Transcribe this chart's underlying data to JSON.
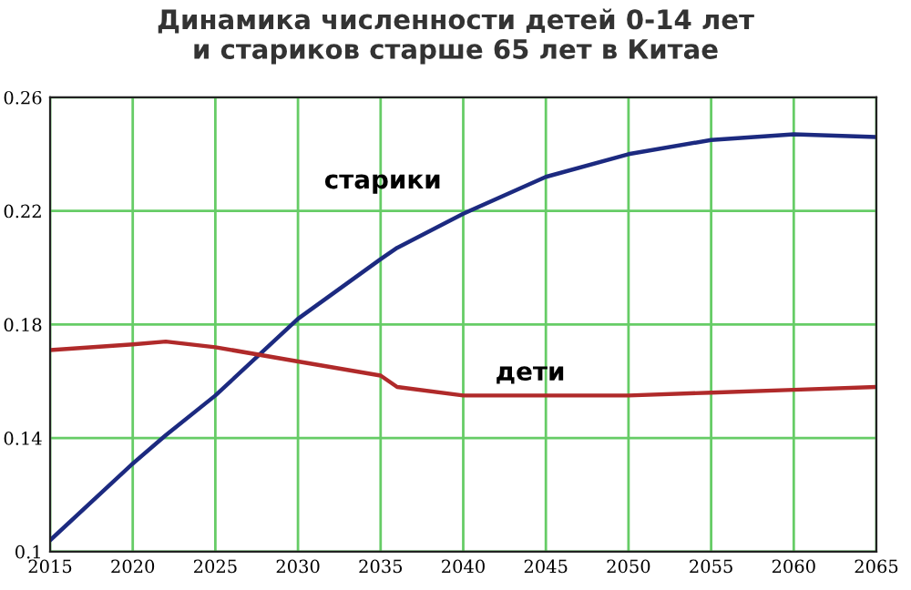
{
  "chart_data": {
    "type": "line",
    "title": "Динамика численности детей 0-14 лет\nи стариков старше 65 лет в Китае",
    "x": [
      2015,
      2020,
      2022,
      2025,
      2030,
      2035,
      2036,
      2040,
      2045,
      2050,
      2055,
      2060,
      2065
    ],
    "series": [
      {
        "name": "старики",
        "color": "#1c2a80",
        "values": [
          0.104,
          0.131,
          0.141,
          0.155,
          0.182,
          0.203,
          0.207,
          0.219,
          0.232,
          0.24,
          0.245,
          0.247,
          0.246
        ]
      },
      {
        "name": "дети",
        "color": "#b02a2a",
        "values": [
          0.171,
          0.173,
          0.174,
          0.172,
          0.167,
          0.162,
          0.158,
          0.155,
          0.155,
          0.155,
          0.156,
          0.157,
          0.158
        ]
      }
    ],
    "xlim": [
      2015,
      2065
    ],
    "xticks": [
      2015,
      2020,
      2025,
      2030,
      2035,
      2040,
      2045,
      2050,
      2055,
      2060,
      2065
    ],
    "ylim": [
      0.1,
      0.26
    ],
    "yticks": [
      0.1,
      0.14,
      0.18,
      0.22,
      0.26
    ],
    "grid": true,
    "marker": "none",
    "line_style": "solid",
    "legend": false
  }
}
